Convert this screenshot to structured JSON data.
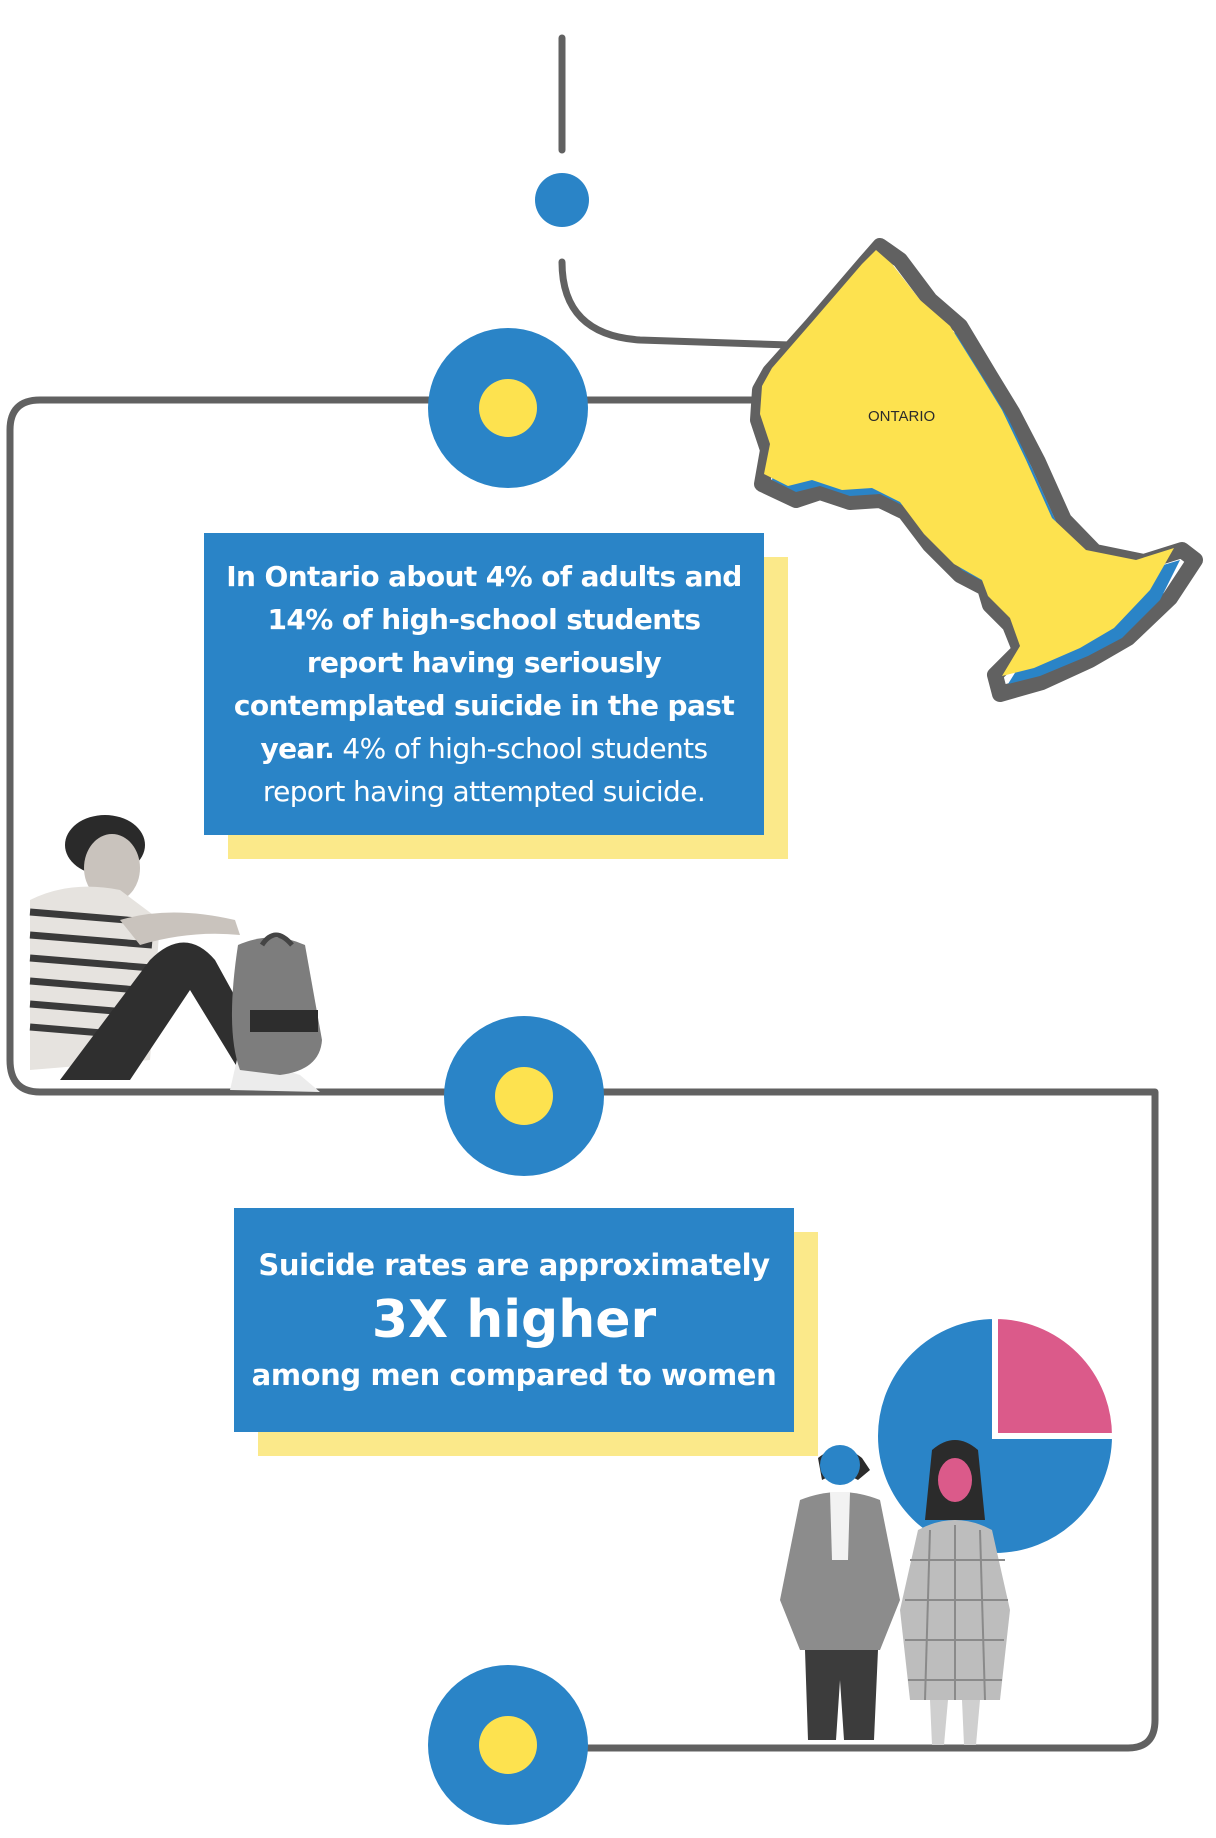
{
  "map": {
    "region_label": "ONTARIO"
  },
  "stat_box_1": {
    "lines": [
      {
        "bold": "In Ontario about 4% of adults and",
        "normal": ""
      },
      {
        "bold": "14% of high-school students",
        "normal": ""
      },
      {
        "bold": "report having seriously",
        "normal": ""
      },
      {
        "bold": "contemplated suicide in the past",
        "normal": ""
      },
      {
        "bold": "year.",
        "normal": " 4% of high-school students"
      },
      {
        "bold": "",
        "normal": "report having attempted suicide."
      }
    ]
  },
  "stat_box_2": {
    "line1": "Suicide rates are approximately",
    "line2": "3X higher",
    "line3": "among men compared to women"
  },
  "pie": {
    "men_share": 0.75,
    "women_share": 0.25,
    "men_color": "#2a84c7",
    "women_color": "#db5a8a"
  },
  "colors": {
    "line": "#616161",
    "blue": "#2a84c7",
    "yellow": "#fde24f",
    "shadow_yellow": "#fbe98a"
  }
}
